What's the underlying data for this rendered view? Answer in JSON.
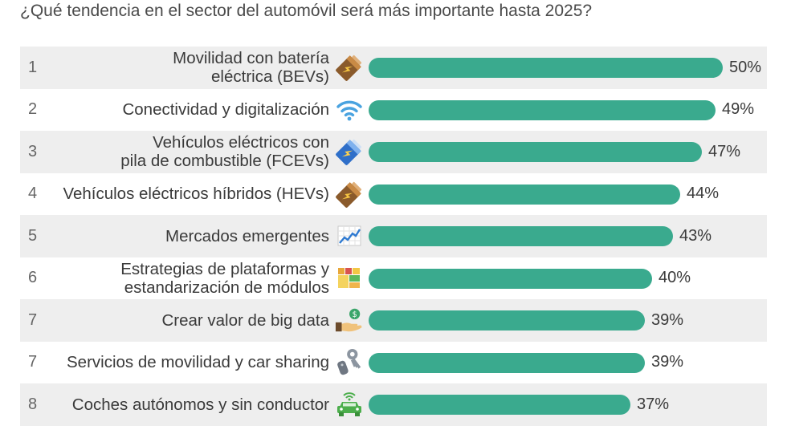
{
  "question": "¿Qué tendencia en el sector del automóvil será más importante hasta 2025?",
  "colors": {
    "bar": "#3aaa8e",
    "row_shade": "#eeeeee"
  },
  "chart_data": {
    "type": "bar",
    "orientation": "horizontal",
    "title": "¿Qué tendencia en el sector del automóvil será más importante hasta 2025?",
    "xlim": [
      0,
      50
    ],
    "grid": false,
    "legend": "none",
    "categories": [
      "Movilidad con batería\neléctrica (BEVs)",
      "Conectividad y digitalización",
      "Vehículos eléctricos con\npila de combustible (FCEVs)",
      "Vehículos eléctricos híbridos (HEVs)",
      "Mercados emergentes",
      "Estrategias de plataformas y\nestandarización de módulos",
      "Crear valor de big data",
      "Servicios de movilidad y car sharing",
      "Coches autónomos y sin conductor"
    ],
    "values": [
      50,
      49,
      47,
      44,
      43,
      40,
      39,
      39,
      37
    ],
    "labels": [
      "50%",
      "49%",
      "47%",
      "44%",
      "43%",
      "40%",
      "39%",
      "39%",
      "37%"
    ],
    "ranks": [
      "1",
      "2",
      "3",
      "4",
      "5",
      "6",
      "7",
      "7",
      "8"
    ],
    "icons": [
      "battery-brown-icon",
      "wifi-icon",
      "battery-blue-icon",
      "battery-brown-icon",
      "chart-trend-icon",
      "blocks-icon",
      "money-hand-icon",
      "keys-icon",
      "connected-car-icon"
    ]
  }
}
